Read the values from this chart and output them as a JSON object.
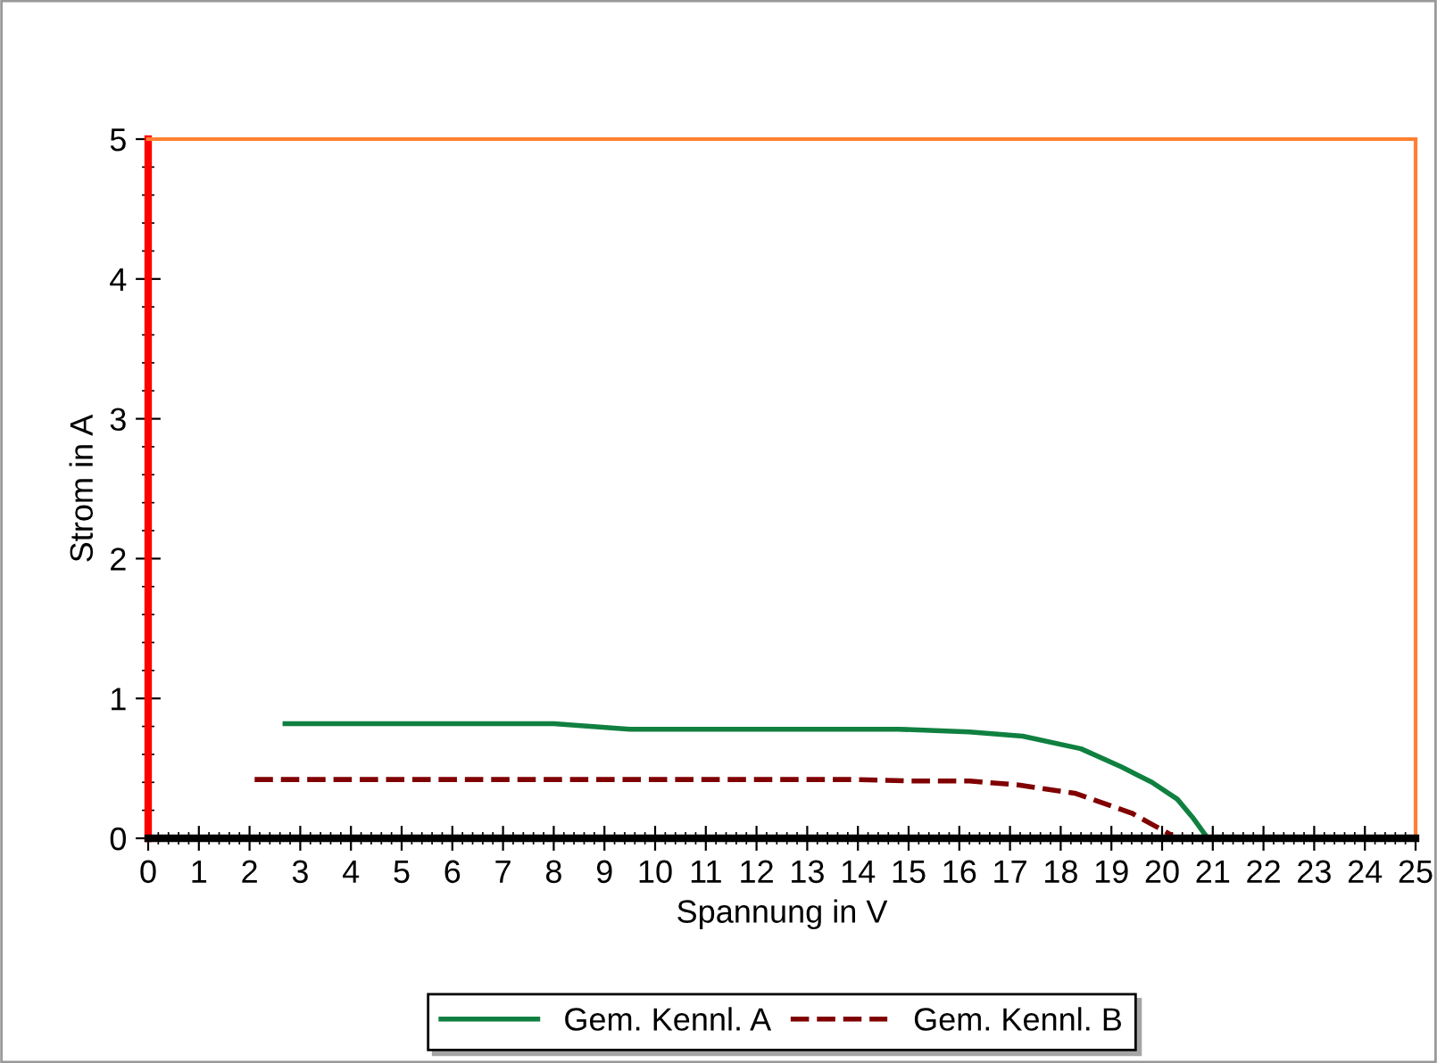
{
  "chart_data": {
    "type": "line",
    "xlabel": "Spannung in V",
    "ylabel": "Strom in A",
    "xlim": [
      0,
      25
    ],
    "ylim": [
      0,
      5
    ],
    "xticks": [
      0,
      1,
      2,
      3,
      4,
      5,
      6,
      7,
      8,
      9,
      10,
      11,
      12,
      13,
      14,
      15,
      16,
      17,
      18,
      19,
      20,
      21,
      22,
      23,
      24,
      25
    ],
    "yticks": [
      0,
      1,
      2,
      3,
      4,
      5
    ],
    "grid": false,
    "legend": "bottom",
    "series": [
      {
        "name": "Gem. Kennl. A",
        "color": "#108040",
        "line_style": "solid",
        "x": [
          2.7,
          8.0,
          9.5,
          14.8,
          16.2,
          17.25,
          18.4,
          19.2,
          19.8,
          20.3,
          20.6,
          20.9
        ],
        "values": [
          0.82,
          0.82,
          0.78,
          0.78,
          0.76,
          0.73,
          0.64,
          0.51,
          0.4,
          0.28,
          0.15,
          0
        ]
      },
      {
        "name": "Gem. Kennl. B",
        "color": "#800000",
        "line_style": "dashed",
        "x": [
          2.1,
          13.9,
          15.0,
          16.2,
          17.2,
          18.3,
          19.4,
          19.8,
          20.2
        ],
        "values": [
          0.42,
          0.42,
          0.41,
          0.41,
          0.38,
          0.32,
          0.18,
          0.1,
          0.02
        ]
      }
    ]
  }
}
